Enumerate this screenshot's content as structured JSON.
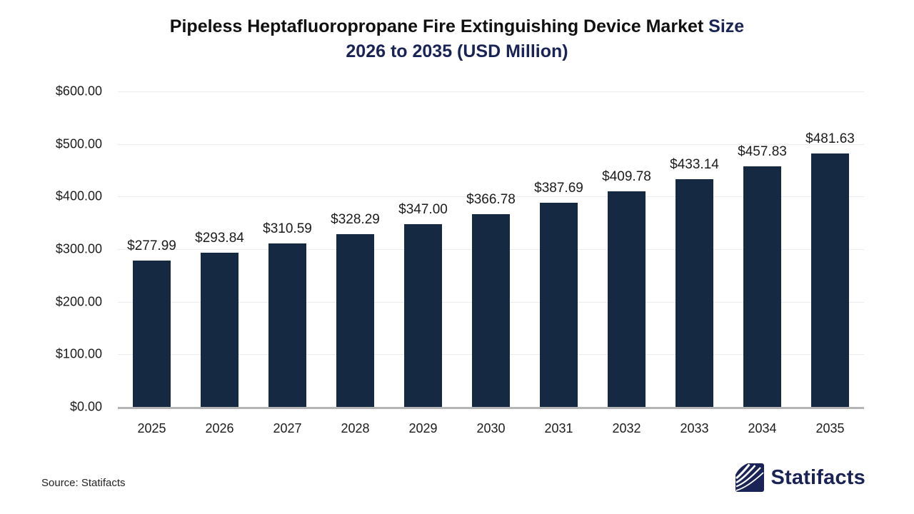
{
  "title": {
    "line1_main": "Pipeless Heptafluoropropane Fire Extinguishing Device Market ",
    "line1_accent": "Size",
    "line2": "2026 to 2035 (USD Million)"
  },
  "chart_data": {
    "type": "bar",
    "title": "Pipeless Heptafluoropropane Fire Extinguishing Device Market Size 2026 to 2035 (USD Million)",
    "categories": [
      "2025",
      "2026",
      "2027",
      "2028",
      "2029",
      "2030",
      "2031",
      "2032",
      "2033",
      "2034",
      "2035"
    ],
    "values": [
      277.99,
      293.84,
      310.59,
      328.29,
      347.0,
      366.78,
      387.69,
      409.78,
      433.14,
      457.83,
      481.63
    ],
    "value_labels": [
      "$277.99",
      "$293.84",
      "$310.59",
      "$328.29",
      "$347.00",
      "$366.78",
      "$387.69",
      "$409.78",
      "$433.14",
      "$457.83",
      "$481.63"
    ],
    "xlabel": "",
    "ylabel": "",
    "ylim": [
      0,
      600
    ],
    "y_tick_values": [
      600,
      500,
      400,
      300,
      200,
      100,
      0
    ],
    "y_tick_labels": [
      "$600.00",
      "$500.00",
      "$400.00",
      "$300.00",
      "$200.00",
      "$100.00",
      "$0.00"
    ],
    "grid": true,
    "legend_position": "none",
    "bar_color": "#152A42"
  },
  "footer": {
    "source": "Source: Statifacts",
    "logo_text": "Statifacts"
  },
  "colors": {
    "title_accent": "#1A2355",
    "bar": "#152A42",
    "gridline": "#ececec",
    "axis_line": "#b5b5b5",
    "label_text": "#1b1b1b"
  }
}
